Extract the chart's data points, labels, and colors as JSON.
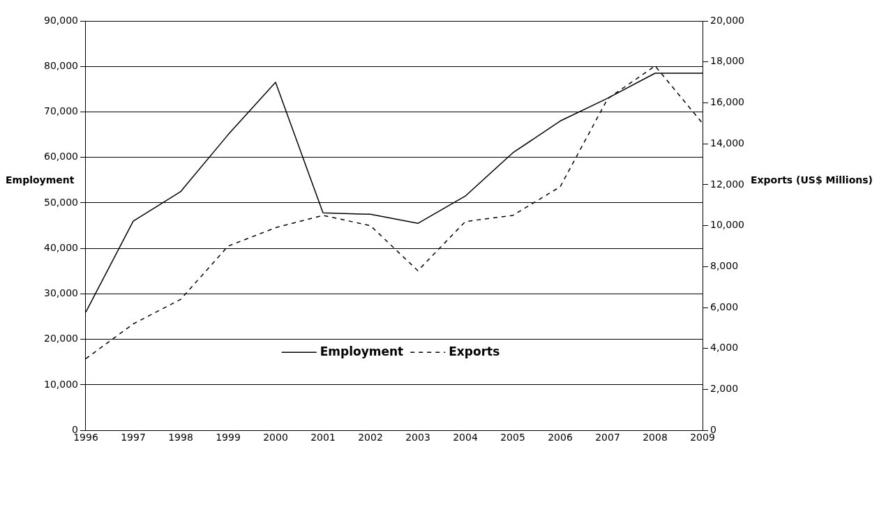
{
  "chart_data": {
    "type": "line",
    "categories": [
      "1996",
      "1997",
      "1998",
      "1999",
      "2000",
      "2001",
      "2002",
      "2003",
      "2004",
      "2005",
      "2006",
      "2007",
      "2008",
      "2009"
    ],
    "series": [
      {
        "name": "Employment",
        "color": "#000000",
        "line_style": "solid",
        "values": [
          26000,
          46000,
          52500,
          65000,
          76500,
          47800,
          47500,
          45500,
          51500,
          61000,
          68000,
          73000,
          78500,
          78500
        ]
      },
      {
        "name": "Exports",
        "color": "#000000",
        "line_style": "dashed",
        "axis": "y2",
        "values": [
          3500,
          5200,
          6400,
          9000,
          9900,
          10500,
          10000,
          7800,
          10200,
          10500,
          11900,
          16200,
          17800,
          15000
        ]
      }
    ],
    "ylabel": "Employment",
    "y2label": "Exports (US$ Millions)",
    "ylim": [
      0,
      90000
    ],
    "yticks": [
      0,
      {
        "value": 10000,
        "label": "10,000"
      },
      {
        "value": 20000,
        "label": "20,000"
      },
      {
        "value": 30000,
        "label": "30,000"
      },
      {
        "value": 40000,
        "label": "40,000"
      },
      {
        "value": 50000,
        "label": "50,000"
      },
      {
        "value": 60000,
        "label": "60,000"
      },
      {
        "value": 70000,
        "label": "70,000"
      },
      {
        "value": 80000,
        "label": "80,000"
      },
      {
        "value": 90000,
        "label": "90,000"
      }
    ],
    "y2lim": [
      0,
      20000
    ],
    "y2ticks": [
      0,
      {
        "value": 2000,
        "label": "2,000"
      },
      {
        "value": 4000,
        "label": "4,000"
      },
      {
        "value": 6000,
        "label": "6,000"
      },
      {
        "value": 8000,
        "label": "8,000"
      },
      {
        "value": 10000,
        "label": "10,000"
      },
      {
        "value": 12000,
        "label": "12,000"
      },
      {
        "value": 14000,
        "label": "14,000"
      },
      {
        "value": 16000,
        "label": "16,000"
      },
      {
        "value": 18000,
        "label": "18,000"
      },
      {
        "value": 20000,
        "label": "20,000"
      }
    ],
    "grid": "y",
    "legend": "bottom",
    "marker": "none"
  }
}
